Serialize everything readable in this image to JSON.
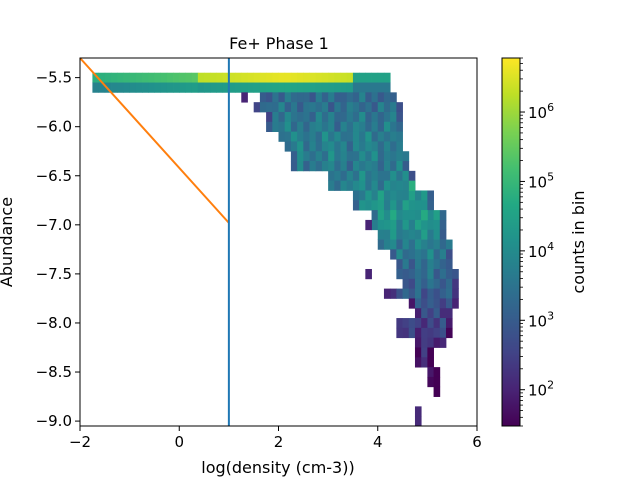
{
  "chart_data": {
    "type": "heatmap",
    "title": "Fe+ Phase 1",
    "xlabel": "log(density (cm-3))",
    "ylabel": "Abundance",
    "xlim": [
      -2,
      6
    ],
    "ylim": [
      -9.05,
      -5.3
    ],
    "xticks": [
      -2,
      0,
      2,
      4,
      6
    ],
    "xtick_labels": [
      "−2",
      "0",
      "2",
      "4",
      "6"
    ],
    "yticks": [
      -5.5,
      -6.0,
      -6.5,
      -7.0,
      -7.5,
      -8.0,
      -8.5,
      -9.0
    ],
    "ytick_labels": [
      "−5.5",
      "−6.0",
      "−6.5",
      "−7.0",
      "−7.5",
      "−8.0",
      "−8.5",
      "−9.0"
    ],
    "grid": false,
    "bin_dx": 0.125,
    "bin_dy": 0.1,
    "colorbar": {
      "label": "counts in bin",
      "scale": "log",
      "range": [
        30,
        6000000
      ],
      "tick_exponents": [
        2,
        3,
        4,
        5,
        6
      ],
      "tick_base": "10",
      "colormap": "viridis"
    },
    "bands": [
      {
        "y": -5.5,
        "x0": -1.75,
        "x1": 4.25,
        "logc_left": 4.8,
        "logc_right": 6.6,
        "logc_tail": 4.5
      },
      {
        "y": -5.6,
        "x0": -1.75,
        "x1": 4.25,
        "logc_left": 3.8,
        "logc_right": 4.6,
        "logc_tail": 3.6
      },
      {
        "y": -5.7,
        "x0": 1.625,
        "x1": 4.375,
        "logc": 3.3
      },
      {
        "y": -5.8,
        "x0": 1.5,
        "x1": 4.5,
        "logc": 3.4
      },
      {
        "y": -5.9,
        "x0": 1.75,
        "x1": 4.5,
        "logc": 3.5
      },
      {
        "y": -6.0,
        "x0": 1.75,
        "x1": 4.5,
        "logc": 3.6
      },
      {
        "y": -6.1,
        "x0": 2.0,
        "x1": 4.5,
        "logc": 3.7
      },
      {
        "y": -6.2,
        "x0": 2.125,
        "x1": 4.5,
        "logc": 3.7
      },
      {
        "y": -6.3,
        "x0": 2.25,
        "x1": 4.625,
        "logc": 3.7
      },
      {
        "y": -6.4,
        "x0": 2.25,
        "x1": 4.625,
        "logc": 3.6
      },
      {
        "y": -6.5,
        "x0": 3.0,
        "x1": 4.75,
        "logc": 3.7
      },
      {
        "y": -6.6,
        "x0": 3.0,
        "x1": 4.75,
        "logc": 3.8
      },
      {
        "y": -6.7,
        "x0": 3.5,
        "x1": 5.125,
        "logc": 4.0
      },
      {
        "y": -6.8,
        "x0": 3.5,
        "x1": 5.125,
        "logc": 4.1
      },
      {
        "y": -6.9,
        "x0": 3.875,
        "x1": 5.375,
        "logc": 4.2
      },
      {
        "y": -7.0,
        "x0": 3.875,
        "x1": 5.375,
        "logc": 4.1
      },
      {
        "y": -7.1,
        "x0": 4.0,
        "x1": 5.375,
        "logc": 3.9
      },
      {
        "y": -7.2,
        "x0": 4.0,
        "x1": 5.5,
        "logc": 3.7
      },
      {
        "y": -7.3,
        "x0": 4.25,
        "x1": 5.5,
        "logc": 3.6
      },
      {
        "y": -7.4,
        "x0": 4.375,
        "x1": 5.5,
        "logc": 3.4
      },
      {
        "y": -7.5,
        "x0": 4.375,
        "x1": 5.625,
        "logc": 3.3
      },
      {
        "y": -7.6,
        "x0": 4.5,
        "x1": 5.625,
        "logc": 3.2
      },
      {
        "y": -7.7,
        "x0": 4.25,
        "x1": 5.625,
        "logc": 3.0
      },
      {
        "y": -7.8,
        "x0": 4.625,
        "x1": 5.625,
        "logc": 2.8
      },
      {
        "y": -7.9,
        "x0": 4.75,
        "x1": 5.5,
        "logc": 2.6
      },
      {
        "y": -8.0,
        "x0": 4.375,
        "x1": 5.5,
        "logc": 2.5
      },
      {
        "y": -8.1,
        "x0": 4.375,
        "x1": 5.5,
        "logc": 2.4
      },
      {
        "y": -8.2,
        "x0": 4.75,
        "x1": 5.375,
        "logc": 2.3
      },
      {
        "y": -8.3,
        "x0": 4.75,
        "x1": 5.125,
        "logc": 2.2
      },
      {
        "y": -8.4,
        "x0": 4.75,
        "x1": 5.125,
        "logc": 2.2
      },
      {
        "y": -8.5,
        "x0": 5.0,
        "x1": 5.25,
        "logc": 2.1
      },
      {
        "y": -8.6,
        "x0": 5.0,
        "x1": 5.25,
        "logc": 2.1
      },
      {
        "y": -8.7,
        "x0": 5.125,
        "x1": 5.25,
        "logc": 2.0
      }
    ],
    "cells": [
      {
        "x": 1.25,
        "y": -5.7,
        "logc": 2.0
      },
      {
        "x": 3.75,
        "y": -7.0,
        "logc": 2.0
      },
      {
        "x": 3.75,
        "y": -7.5,
        "logc": 2.0
      },
      {
        "x": 4.125,
        "y": -7.7,
        "logc": 2.0
      },
      {
        "x": 4.75,
        "y": -8.9,
        "logc": 2.1
      },
      {
        "x": 4.75,
        "y": -9.0,
        "logc": 2.1
      },
      {
        "x": 4.625,
        "y": -6.6,
        "logc": 4.8
      },
      {
        "x": 4.875,
        "y": -6.9,
        "logc": 4.7
      }
    ],
    "lines": [
      {
        "color": "#ff7f0e",
        "x": [
          -2,
          1
        ],
        "y": [
          -5.3,
          -6.98
        ]
      },
      {
        "color": "#1f77b4",
        "x": [
          1,
          1
        ],
        "y": [
          -5.3,
          -9.05
        ]
      }
    ]
  }
}
